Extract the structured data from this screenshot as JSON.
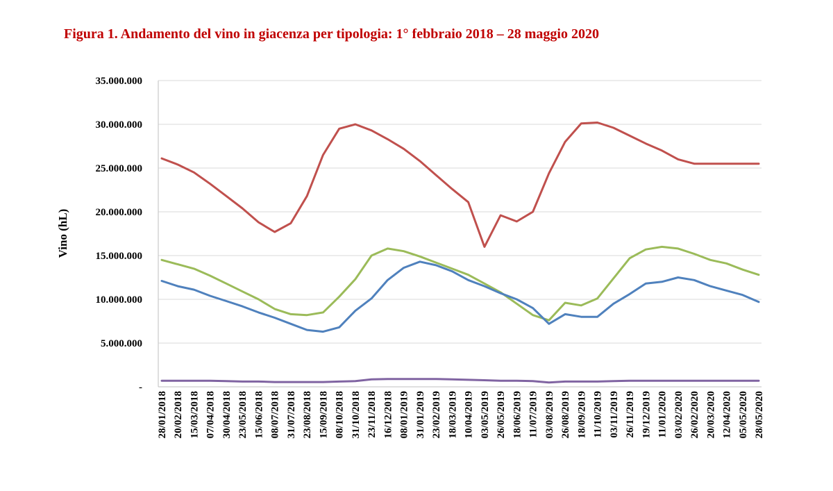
{
  "title": "Figura 1. Andamento del vino in giacenza per tipologia: 1° febbraio 2018 – 28 maggio 2020",
  "chart_data": {
    "type": "line",
    "title": "Figura 1. Andamento del vino in giacenza per tipologia: 1° febbraio 2018 – 28 maggio 2020",
    "xlabel": "",
    "ylabel": "Vino (hL)",
    "ylim": [
      0,
      35000000
    ],
    "yticks": [
      0,
      5000000,
      10000000,
      15000000,
      20000000,
      25000000,
      30000000,
      35000000
    ],
    "ytick_labels": [
      "-",
      "5.000.000",
      "10.000.000",
      "15.000.000",
      "20.000.000",
      "25.000.000",
      "30.000.000",
      "35.000.000"
    ],
    "grid": true,
    "legend": "none",
    "x": [
      "28/01/2018",
      "20/02/2018",
      "15/03/2018",
      "07/04/2018",
      "30/04/2018",
      "23/05/2018",
      "15/06/2018",
      "08/07/2018",
      "31/07/2018",
      "23/08/2018",
      "15/09/2018",
      "08/10/2018",
      "31/10/2018",
      "23/11/2018",
      "16/12/2018",
      "08/01/2019",
      "31/01/2019",
      "23/02/2019",
      "18/03/2019",
      "10/04/2019",
      "03/05/2019",
      "26/05/2019",
      "18/06/2019",
      "11/07/2019",
      "03/08/2019",
      "26/08/2019",
      "18/09/2019",
      "11/10/2019",
      "03/11/2019",
      "26/11/2019",
      "19/12/2019",
      "11/01/2020",
      "03/02/2020",
      "26/02/2020",
      "20/03/2020",
      "12/04/2020",
      "05/05/2020",
      "28/05/2020"
    ],
    "series": [
      {
        "color": "#c0504d",
        "values": [
          26100000,
          25400000,
          24500000,
          23200000,
          21800000,
          20400000,
          18800000,
          17700000,
          18700000,
          21800000,
          26500000,
          29500000,
          30000000,
          29300000,
          28300000,
          27200000,
          25800000,
          24200000,
          22600000,
          21100000,
          16000000,
          19600000,
          18900000,
          20000000,
          24400000,
          28000000,
          30100000,
          30200000,
          29600000,
          28700000,
          27800000,
          27000000,
          26000000,
          25500000,
          25500000,
          25500000,
          25500000,
          25500000
        ]
      },
      {
        "color": "#9bbb59",
        "values": [
          14500000,
          14000000,
          13500000,
          12700000,
          11800000,
          10900000,
          10000000,
          8900000,
          8300000,
          8200000,
          8500000,
          10300000,
          12300000,
          15000000,
          15800000,
          15500000,
          14900000,
          14200000,
          13500000,
          12800000,
          11800000,
          10800000,
          9500000,
          8200000,
          7600000,
          9600000,
          9300000,
          10100000,
          12400000,
          14700000,
          15700000,
          16000000,
          15800000,
          15200000,
          14500000,
          14100000,
          13400000,
          12800000
        ]
      },
      {
        "color": "#4f81bd",
        "values": [
          12100000,
          11500000,
          11100000,
          10400000,
          9800000,
          9200000,
          8500000,
          7900000,
          7200000,
          6500000,
          6300000,
          6800000,
          8700000,
          10100000,
          12200000,
          13600000,
          14300000,
          13900000,
          13200000,
          12200000,
          11500000,
          10700000,
          10000000,
          9000000,
          7200000,
          8300000,
          8000000,
          8000000,
          9500000,
          10600000,
          11800000,
          12000000,
          12500000,
          12200000,
          11500000,
          11000000,
          10500000,
          9700000
        ]
      },
      {
        "color": "#8064a2",
        "values": [
          700000,
          700000,
          700000,
          700000,
          650000,
          600000,
          600000,
          550000,
          550000,
          550000,
          550000,
          600000,
          650000,
          850000,
          900000,
          900000,
          900000,
          900000,
          850000,
          800000,
          750000,
          700000,
          700000,
          650000,
          500000,
          600000,
          600000,
          600000,
          650000,
          700000,
          700000,
          700000,
          700000,
          700000,
          700000,
          700000,
          700000,
          700000
        ]
      }
    ]
  }
}
